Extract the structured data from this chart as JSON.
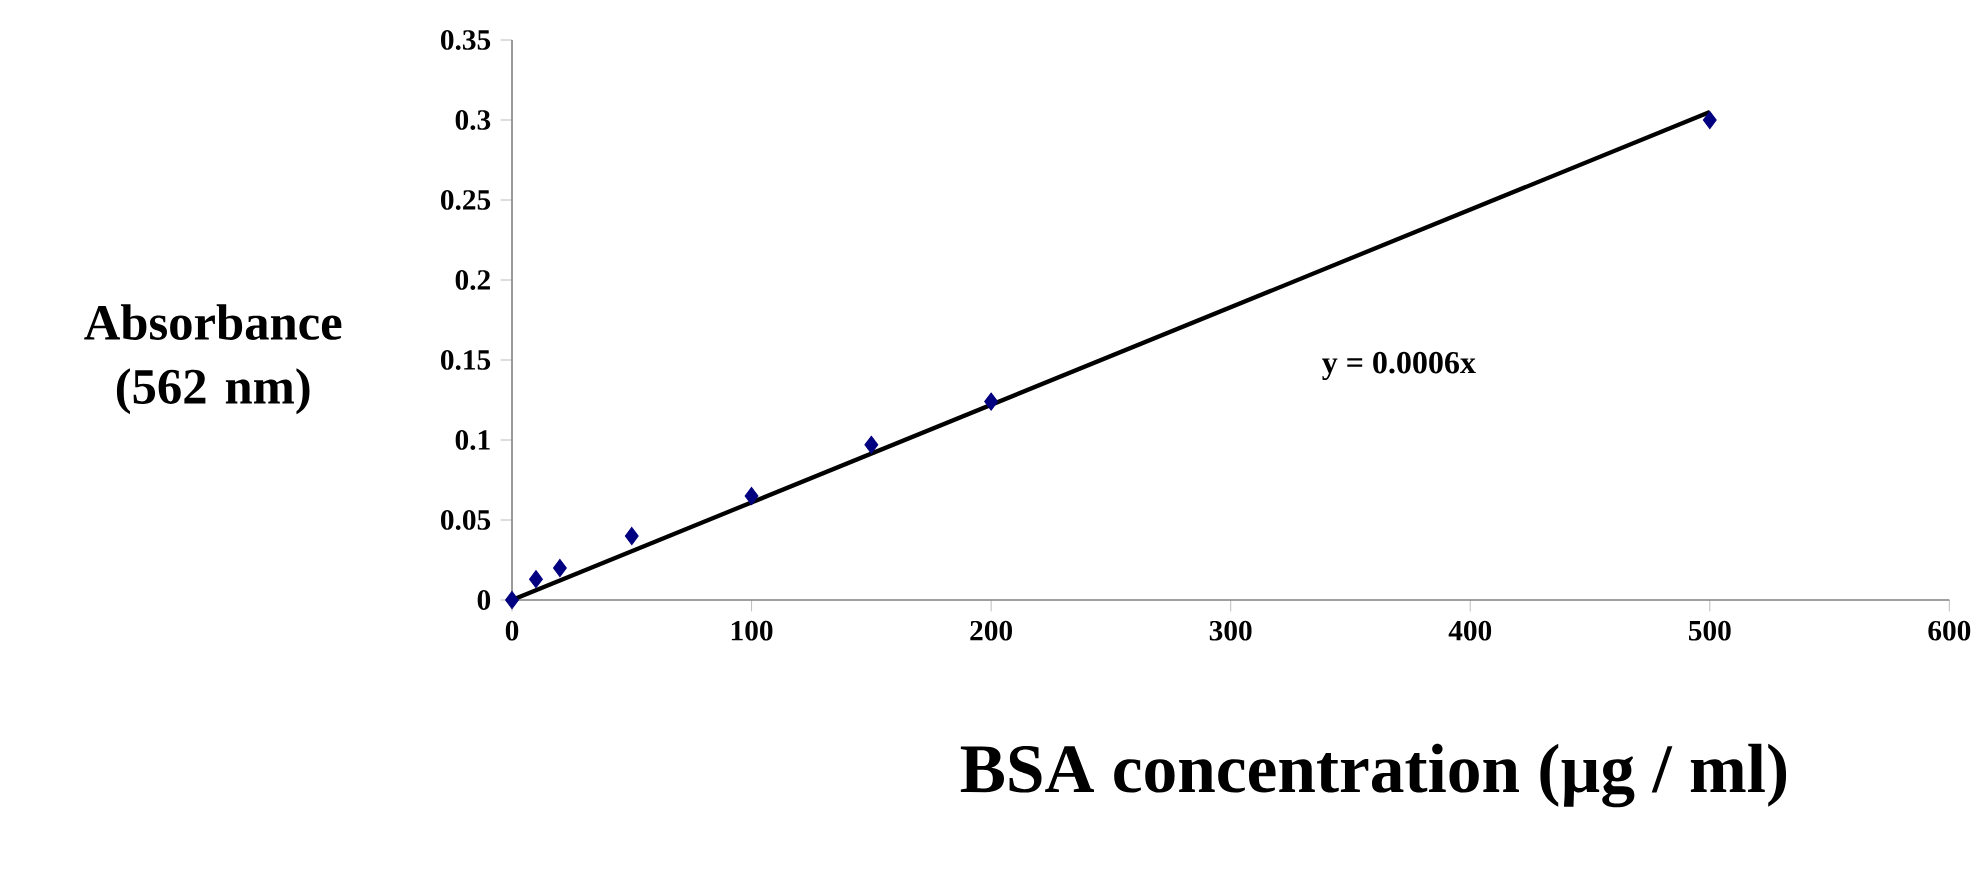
{
  "chart_data": {
    "type": "scatter",
    "xlabel": "BSA concentration (µg / ml)",
    "ylabel": "Absorbance (562 nm)",
    "xlim": [
      0,
      600
    ],
    "xticks": [
      0,
      100,
      200,
      300,
      400,
      500,
      600
    ],
    "ylim": [
      0,
      0.35
    ],
    "yticks": [
      0,
      0.05,
      0.1,
      0.15,
      0.2,
      0.25,
      0.3,
      0.35
    ],
    "grid": false,
    "series": [
      {
        "color": "#000080",
        "marker": "diamond",
        "x": [
          0,
          10,
          20,
          50,
          100,
          150,
          200,
          500
        ],
        "values": [
          0,
          0.013,
          0.02,
          0.04,
          0.065,
          0.097,
          0.124,
          0.3
        ]
      },
      {
        "type": "line",
        "color": "#000000",
        "x": [
          0,
          500
        ],
        "values": [
          0,
          0.305
        ]
      }
    ],
    "annotations": [
      "y = 0.0006x"
    ]
  }
}
